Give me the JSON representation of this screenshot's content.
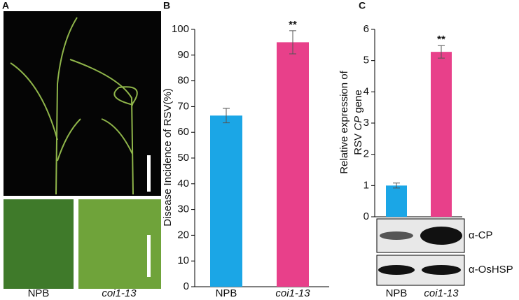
{
  "panels": [
    "A",
    "B",
    "C"
  ],
  "photo_labels": [
    "NPB",
    "coi1-13"
  ],
  "blot": {
    "bands": [
      "α-CP",
      "α-OsHSP"
    ]
  },
  "chart_data": [
    {
      "type": "bar",
      "y_label": "Disease Incidence of RSV(%)",
      "categories": [
        "NPB",
        "coi1-13"
      ],
      "values": [
        66.5,
        95
      ],
      "errors": [
        2.8,
        4.5
      ],
      "significance": [
        null,
        "**"
      ],
      "colors": [
        "#1ba6e6",
        "#e8408a"
      ],
      "ylim": [
        0,
        100
      ],
      "yticks": [
        0,
        10,
        20,
        30,
        40,
        50,
        60,
        70,
        80,
        90,
        100
      ]
    },
    {
      "type": "bar",
      "y_label": {
        "line1": "Relative expression of",
        "line2": [
          "RSV",
          "CP",
          "gene"
        ]
      },
      "categories": [
        "NPB",
        "coi1-13"
      ],
      "values": [
        1.0,
        5.28
      ],
      "errors": [
        0.08,
        0.2
      ],
      "significance": [
        null,
        "**"
      ],
      "colors": [
        "#1ba6e6",
        "#e8408a"
      ],
      "ylim": [
        0,
        6
      ],
      "yticks": [
        0,
        1,
        2,
        3,
        4,
        5,
        6
      ]
    }
  ]
}
